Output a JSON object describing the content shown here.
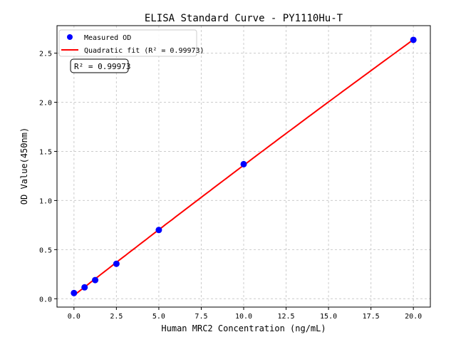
{
  "chart_data": {
    "type": "scatter",
    "title": "ELISA Standard Curve - PY1110Hu-T",
    "xlabel": "Human MRC2 Concentration (ng/mL)",
    "ylabel": "OD Value(450nm)",
    "xlim": [
      -1,
      21
    ],
    "ylim": [
      -0.085,
      2.78
    ],
    "xticks": [
      0.0,
      2.5,
      5.0,
      7.5,
      10.0,
      12.5,
      15.0,
      17.5,
      20.0
    ],
    "xtick_labels": [
      "0.0",
      "2.5",
      "5.0",
      "7.5",
      "10.0",
      "12.5",
      "15.0",
      "17.5",
      "20.0"
    ],
    "yticks": [
      0.0,
      0.5,
      1.0,
      1.5,
      2.0,
      2.5
    ],
    "ytick_labels": [
      "0.0",
      "0.5",
      "1.0",
      "1.5",
      "2.0",
      "2.5"
    ],
    "grid": true,
    "legend_position": "top-left",
    "series": [
      {
        "name": "Measured OD",
        "kind": "scatter",
        "color": "#0000ff",
        "x": [
          0,
          0.625,
          1.25,
          2.5,
          5,
          10,
          20
        ],
        "y": [
          0.058,
          0.116,
          0.19,
          0.356,
          0.7,
          1.37,
          2.635
        ]
      },
      {
        "name": "Quadratic fit (R² = 0.99973)",
        "kind": "line",
        "color": "#ff0000",
        "fit": "quadratic",
        "x_range": [
          0,
          20
        ]
      }
    ],
    "annotation": "R² = 0.99973"
  }
}
